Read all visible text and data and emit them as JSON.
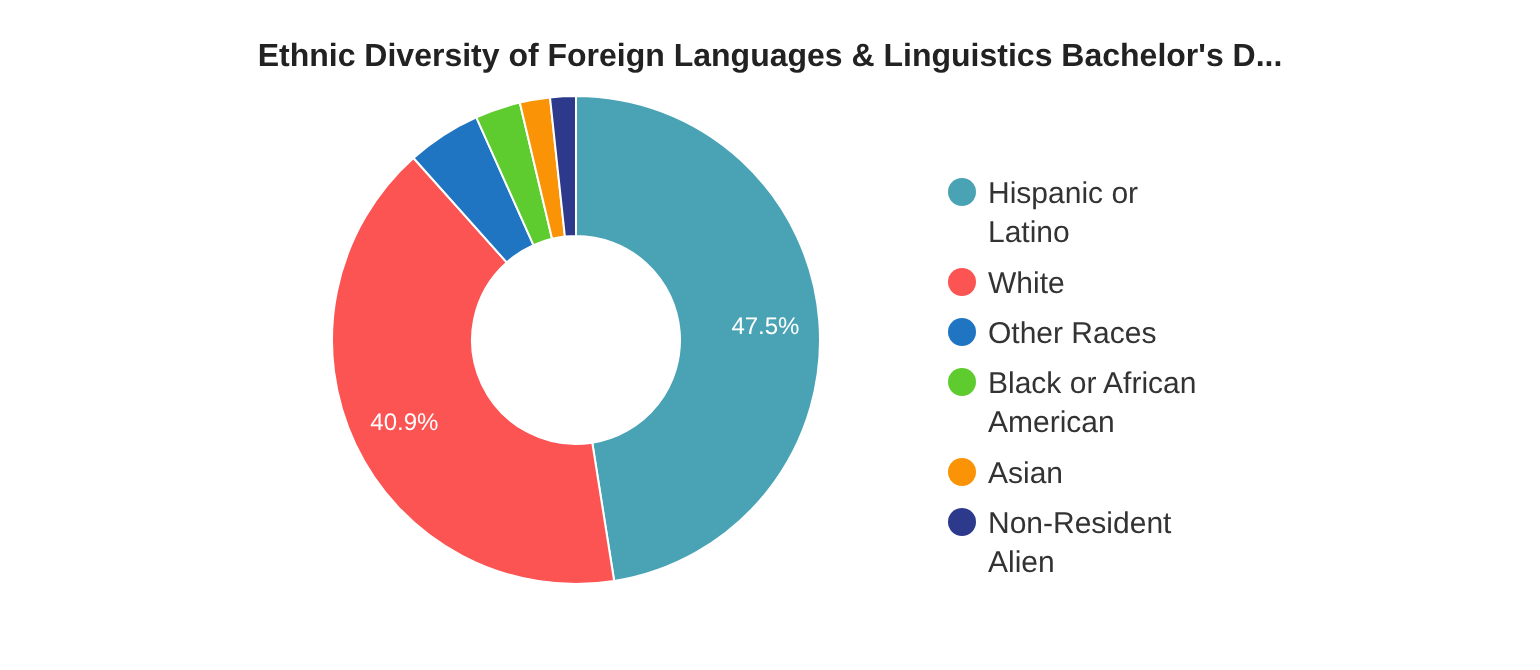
{
  "chart_data": {
    "type": "donut",
    "title": "Ethnic Diversity of Foreign Languages & Linguistics Bachelor's D...",
    "categories": [
      "Hispanic or Latino",
      "White",
      "Other Races",
      "Black or African American",
      "Asian",
      "Non-Resident Alien"
    ],
    "values": [
      47.5,
      40.9,
      4.9,
      3.0,
      2.0,
      1.7
    ],
    "colors": [
      "#4aa3b5",
      "#fc5353",
      "#1f75c1",
      "#5ecc2f",
      "#fb9307",
      "#2d3a8c"
    ],
    "value_labels": [
      "47.5%",
      "40.9%",
      null,
      null,
      null,
      null
    ],
    "legend": "right"
  }
}
